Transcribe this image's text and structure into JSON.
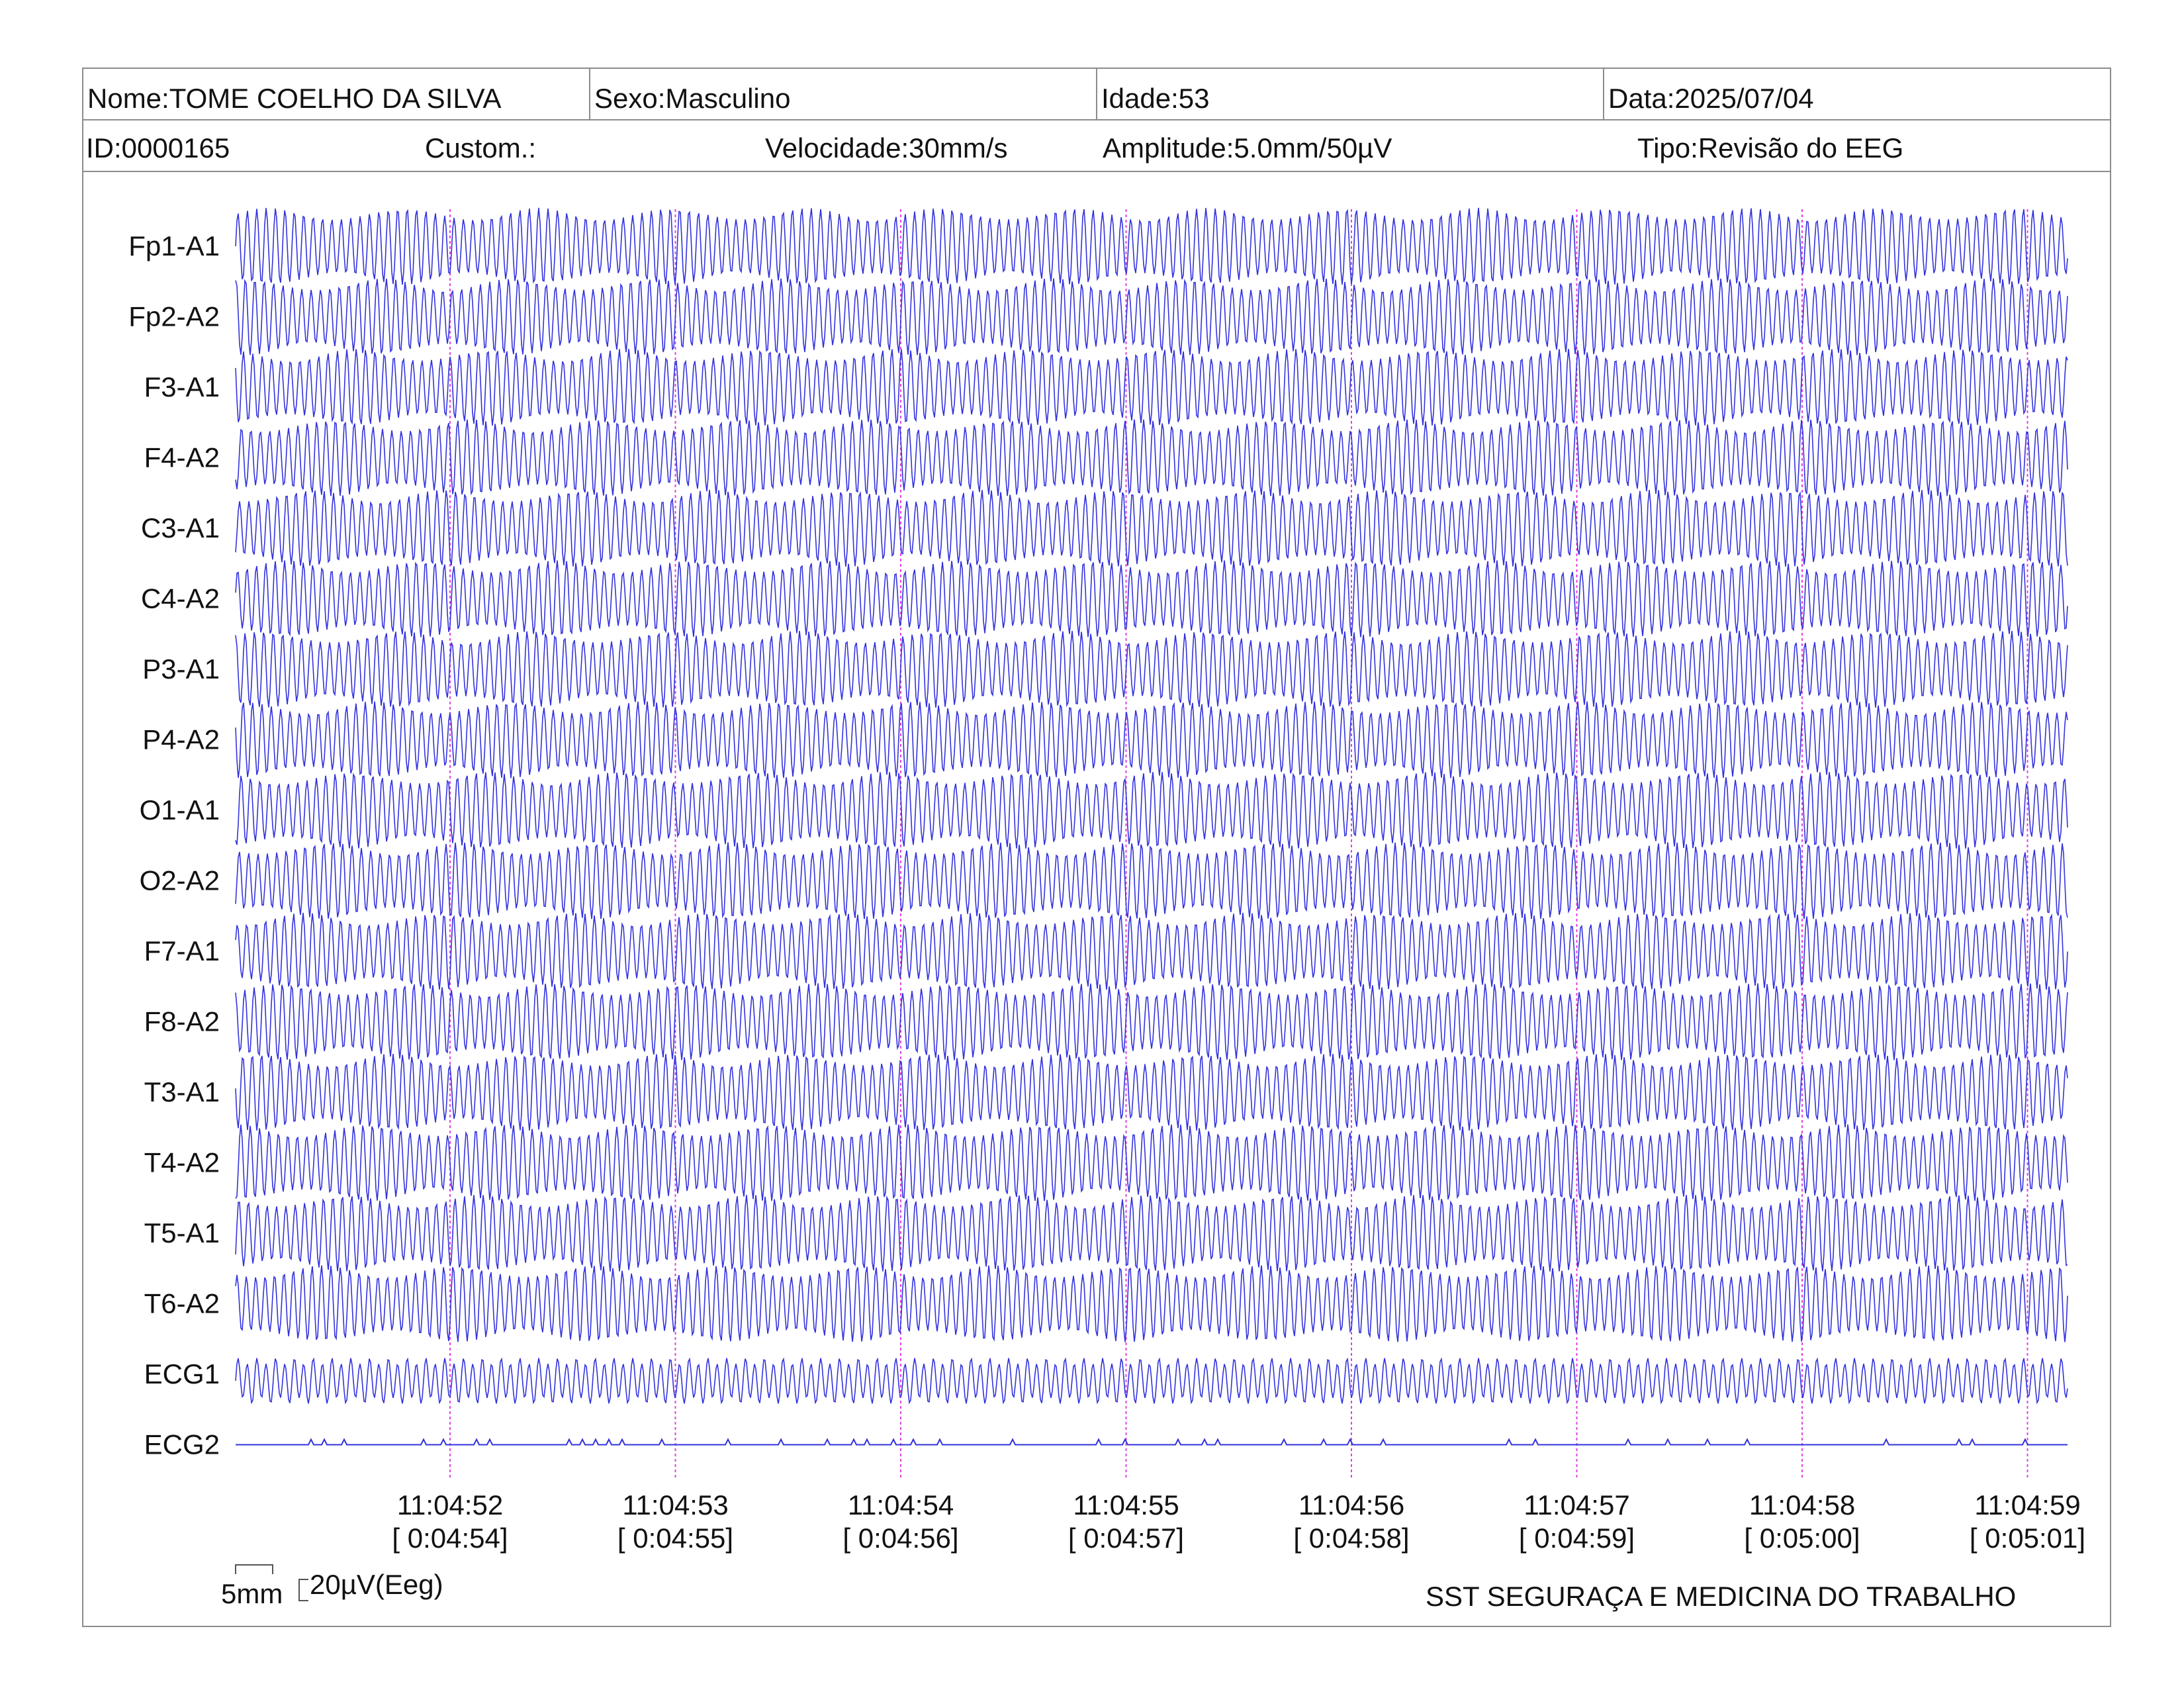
{
  "header": {
    "nome": "Nome:TOME COELHO DA SILVA",
    "sexo": "Sexo:Masculino",
    "idade": "Idade:53",
    "data": "Data:2025/07/04",
    "id": "ID:0000165",
    "custom": "Custom.:",
    "velocidade": "Velocidade:30mm/s",
    "amplitude": "Amplitude:5.0mm/50µV",
    "tipo": "Tipo:Revisão do EEG"
  },
  "channels": [
    "Fp1-A1",
    "Fp2-A2",
    "F3-A1",
    "F4-A2",
    "C3-A1",
    "C4-A2",
    "P3-A1",
    "P4-A2",
    "O1-A1",
    "O2-A2",
    "F7-A1",
    "F8-A2",
    "T3-A1",
    "T4-A2",
    "T5-A1",
    "T6-A2",
    "ECG1",
    "ECG2"
  ],
  "time_marks": [
    {
      "clock": "11:04:52",
      "elapsed": "[ 0:04:54]"
    },
    {
      "clock": "11:04:53",
      "elapsed": "[ 0:04:55]"
    },
    {
      "clock": "11:04:54",
      "elapsed": "[ 0:04:56]"
    },
    {
      "clock": "11:04:55",
      "elapsed": "[ 0:04:57]"
    },
    {
      "clock": "11:04:56",
      "elapsed": "[ 0:04:58]"
    },
    {
      "clock": "11:04:57",
      "elapsed": "[ 0:04:59]"
    },
    {
      "clock": "11:04:58",
      "elapsed": "[ 0:05:00]"
    },
    {
      "clock": "11:04:59",
      "elapsed": "[ 0:05:01]"
    }
  ],
  "scale": {
    "time_label": "5mm",
    "amp_label": "20µV(Eeg)"
  },
  "footer": {
    "company": "SST SEGURAÇA E MEDICINA DO TRABALHO"
  },
  "colors": {
    "trace": "#3333dd",
    "marker": "#e040e0",
    "border": "#8c8c8c"
  }
}
